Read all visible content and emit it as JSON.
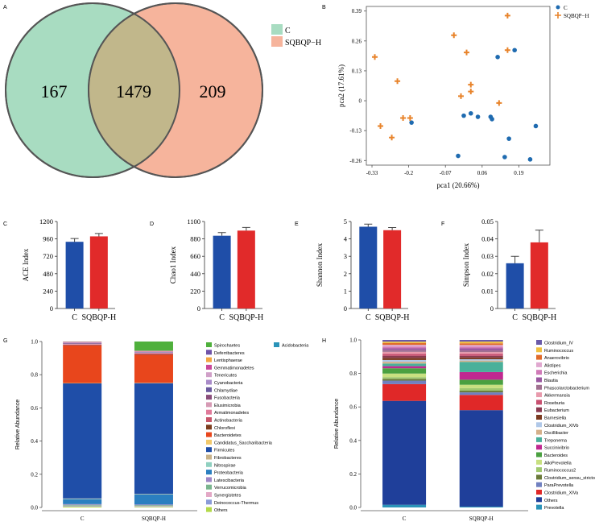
{
  "panels": {
    "A": "A",
    "B": "B",
    "C": "C",
    "D": "D",
    "E": "E",
    "F": "F",
    "G": "G",
    "H": "H"
  },
  "venn": {
    "left_only": "167",
    "overlap": "1479",
    "right_only": "209",
    "legend": [
      {
        "name": "C",
        "color": "#a8dcc1"
      },
      {
        "name": "SQBQP−H",
        "color": "#f6b49c"
      }
    ]
  },
  "chart_data": [
    {
      "id": "pca",
      "type": "scatter",
      "xlabel": "pca1 (20.66%)",
      "ylabel": "pca2 (17.61%)",
      "xlim": [
        -0.35,
        0.3
      ],
      "ylim": [
        -0.28,
        0.41
      ],
      "xticks": [
        "-0.33",
        "-0.2",
        "-0.07",
        "0.06",
        "0.19"
      ],
      "xtick_values": [
        -0.33,
        -0.2,
        -0.07,
        0.06,
        0.19
      ],
      "yticks": [
        "0.39",
        "0.26",
        "0.13",
        "0",
        "-0.13",
        "-0.26"
      ],
      "ytick_values": [
        0.39,
        0.26,
        0.13,
        0,
        -0.13,
        -0.26
      ],
      "series": [
        {
          "name": "C",
          "color": "#1f6bb0",
          "marker": "circle",
          "points": [
            [
              -0.19,
              -0.095
            ],
            [
              0.115,
              0.19
            ],
            [
              0.175,
              0.22
            ],
            [
              0.045,
              -0.07
            ],
            [
              0.02,
              -0.055
            ],
            [
              -0.005,
              -0.065
            ],
            [
              0.09,
              -0.07
            ],
            [
              0.095,
              -0.08
            ],
            [
              0.155,
              -0.165
            ],
            [
              0.25,
              -0.11
            ],
            [
              -0.025,
              -0.24
            ],
            [
              0.14,
              -0.245
            ],
            [
              0.23,
              -0.255
            ]
          ]
        },
        {
          "name": "SQBQP−H",
          "color": "#e8832a",
          "marker": "plus",
          "points": [
            [
              -0.32,
              0.19
            ],
            [
              -0.3,
              -0.11
            ],
            [
              -0.26,
              -0.16
            ],
            [
              -0.24,
              0.085
            ],
            [
              -0.22,
              -0.075
            ],
            [
              -0.195,
              -0.075
            ],
            [
              -0.04,
              0.285
            ],
            [
              -0.015,
              0.02
            ],
            [
              0.005,
              0.21
            ],
            [
              0.02,
              0.07
            ],
            [
              0.02,
              0.04
            ],
            [
              0.15,
              0.37
            ],
            [
              0.15,
              0.22
            ],
            [
              0.12,
              -0.01
            ]
          ]
        }
      ]
    },
    {
      "id": "ace",
      "type": "bar",
      "ylabel": "ACE Index",
      "categories": [
        "C",
        "SQBQP-H"
      ],
      "values": [
        920,
        995
      ],
      "errors": [
        45,
        40
      ],
      "ylim": [
        0,
        1200
      ],
      "yticks": [
        "0",
        "240",
        "480",
        "720",
        "960",
        "1200"
      ],
      "colors": [
        "#1f4ea8",
        "#e12a2a"
      ]
    },
    {
      "id": "chao1",
      "type": "bar",
      "ylabel": "Chao1 Index",
      "categories": [
        "C",
        "SQBQP-H"
      ],
      "values": [
        920,
        985
      ],
      "errors": [
        40,
        40
      ],
      "ylim": [
        0,
        1100
      ],
      "yticks": [
        "0",
        "220",
        "440",
        "660",
        "880",
        "1100"
      ],
      "colors": [
        "#1f4ea8",
        "#e12a2a"
      ]
    },
    {
      "id": "shannon",
      "type": "bar",
      "ylabel": "Shannon Index",
      "categories": [
        "C",
        "SQBQP-H"
      ],
      "values": [
        4.7,
        4.5
      ],
      "errors": [
        0.15,
        0.15
      ],
      "ylim": [
        0,
        5
      ],
      "yticks": [
        "0",
        "1",
        "2",
        "3",
        "4",
        "5"
      ],
      "colors": [
        "#1f4ea8",
        "#e12a2a"
      ]
    },
    {
      "id": "simpson",
      "type": "bar",
      "ylabel": "Simpson Index",
      "categories": [
        "C",
        "SQBQP-H"
      ],
      "values": [
        0.026,
        0.038
      ],
      "errors": [
        0.004,
        0.007
      ],
      "ylim": [
        0,
        0.05
      ],
      "yticks": [
        "0",
        "0.01",
        "0.02",
        "0.03",
        "0.04",
        "0.05"
      ],
      "colors": [
        "#1f4ea8",
        "#e12a2a"
      ]
    },
    {
      "id": "phylum",
      "type": "bar",
      "stacked": true,
      "ylabel": "Relative Abundance",
      "categories": [
        "C",
        "SQBQP-H"
      ],
      "ylim": [
        0,
        1
      ],
      "yticks": [
        "0.0",
        "0.2",
        "0.4",
        "0.6",
        "0.8",
        "1.0"
      ],
      "series": [
        {
          "name": "Others",
          "color": "#b3d94a",
          "values": [
            0.005,
            0.004
          ]
        },
        {
          "name": "Deinococcus-Thermus",
          "color": "#8a9bd8",
          "values": [
            0.003,
            0.002
          ]
        },
        {
          "name": "Synergistetes",
          "color": "#e3a8c6",
          "values": [
            0.003,
            0.003
          ]
        },
        {
          "name": "Verrucomicrobia",
          "color": "#7ab58f",
          "values": [
            0.005,
            0.005
          ]
        },
        {
          "name": "Latescibacteria",
          "color": "#9f86c6",
          "values": [
            0.004,
            0.004
          ]
        },
        {
          "name": "Proteobacteria",
          "color": "#2b7fc0",
          "values": [
            0.03,
            0.06
          ]
        },
        {
          "name": "Nitrospirae",
          "color": "#8fd0c0",
          "values": [
            0.002,
            0.002
          ]
        },
        {
          "name": "Fibrobacteres",
          "color": "#c9b38a",
          "values": [
            0.002,
            0.002
          ]
        },
        {
          "name": "Firmicutes",
          "color": "#1f4ea8",
          "values": [
            0.69,
            0.67
          ]
        },
        {
          "name": "Candidatus_Saccharibacteria",
          "color": "#f2c96b",
          "values": [
            0.002,
            0.002
          ]
        },
        {
          "name": "Bacteroidetes",
          "color": "#e8461c",
          "values": [
            0.225,
            0.17
          ]
        },
        {
          "name": "Chloroflexi",
          "color": "#7c3d1e",
          "values": [
            0.002,
            0.002
          ]
        },
        {
          "name": "Actinobacteria",
          "color": "#c7566a",
          "values": [
            0.004,
            0.005
          ]
        },
        {
          "name": "Armatimonadetes",
          "color": "#e07a9a",
          "values": [
            0.002,
            0.002
          ]
        },
        {
          "name": "Elusimicrobia",
          "color": "#d69ab4",
          "values": [
            0.002,
            0.002
          ]
        },
        {
          "name": "Fusobacteria",
          "color": "#8a4d7a",
          "values": [
            0.002,
            0.002
          ]
        },
        {
          "name": "Chlamydiae",
          "color": "#6b5a9e",
          "values": [
            0.002,
            0.002
          ]
        },
        {
          "name": "Cyanobacteria",
          "color": "#a98bc9",
          "values": [
            0.002,
            0.002
          ]
        },
        {
          "name": "Tenericutes",
          "color": "#d0a0c8",
          "values": [
            0.002,
            0.002
          ]
        },
        {
          "name": "Gemmatimonadetes",
          "color": "#c9489a",
          "values": [
            0.002,
            0.002
          ]
        },
        {
          "name": "Lentisphaerae",
          "color": "#f3a540",
          "values": [
            0.002,
            0.002
          ]
        },
        {
          "name": "Deferribacteres",
          "color": "#6f53a8",
          "values": [
            0.002,
            0.002
          ]
        },
        {
          "name": "Spirochaetes",
          "color": "#4fb03c",
          "values": [
            0.0,
            0.055
          ]
        },
        {
          "name": "Acidobacteria",
          "color": "#2a93b8",
          "values": [
            0.0,
            0.0
          ]
        }
      ]
    },
    {
      "id": "genus",
      "type": "bar",
      "stacked": true,
      "ylabel": "Relative Abundance",
      "categories": [
        "C",
        "SQBQP-H"
      ],
      "ylim": [
        0,
        1
      ],
      "yticks": [
        "0.0",
        "0.2",
        "0.4",
        "0.6",
        "0.8",
        "1.0"
      ],
      "series": [
        {
          "name": "Prevotella",
          "color": "#2a93b8",
          "values": [
            0.015,
            0.005
          ]
        },
        {
          "name": "Others",
          "color": "#1f3f9a",
          "values": [
            0.59,
            0.57
          ]
        },
        {
          "name": "Clostridium_XIVa",
          "color": "#e02828",
          "values": [
            0.095,
            0.09
          ]
        },
        {
          "name": "ParaPrevotella",
          "color": "#7080c0",
          "values": [
            0.02,
            0.015
          ]
        },
        {
          "name": "Clostridium_sensu_stricto",
          "color": "#6a7a3a",
          "values": [
            0.01,
            0.01
          ]
        },
        {
          "name": "Ruminococcus2",
          "color": "#a0c870",
          "values": [
            0.01,
            0.015
          ]
        },
        {
          "name": "AlloPrevotella",
          "color": "#c8e080",
          "values": [
            0.02,
            0.02
          ]
        },
        {
          "name": "Bacteroides",
          "color": "#4aa040",
          "values": [
            0.03,
            0.03
          ]
        },
        {
          "name": "Succinivibrio",
          "color": "#c02890",
          "values": [
            0.012,
            0.045
          ]
        },
        {
          "name": "Treponema",
          "color": "#4ab09a",
          "values": [
            0.015,
            0.06
          ]
        },
        {
          "name": "Oscillibacter",
          "color": "#d4b08a",
          "values": [
            0.01,
            0.008
          ]
        },
        {
          "name": "Clostridium_XIVb",
          "color": "#b0c8e8",
          "values": [
            0.01,
            0.008
          ]
        },
        {
          "name": "Barnesiella",
          "color": "#7a3a20",
          "values": [
            0.012,
            0.01
          ]
        },
        {
          "name": "Eubacterium",
          "color": "#8a3a50",
          "values": [
            0.012,
            0.01
          ]
        },
        {
          "name": "Roseburia",
          "color": "#c85070",
          "values": [
            0.01,
            0.012
          ]
        },
        {
          "name": "Akkermansia",
          "color": "#e89aac",
          "values": [
            0.012,
            0.01
          ]
        },
        {
          "name": "Phascolarctobacterium",
          "color": "#a07090",
          "values": [
            0.01,
            0.01
          ]
        },
        {
          "name": "Blautia",
          "color": "#9a58a0",
          "values": [
            0.01,
            0.012
          ]
        },
        {
          "name": "Escherichia",
          "color": "#d07ab8",
          "values": [
            0.01,
            0.01
          ]
        },
        {
          "name": "Alistipes",
          "color": "#e0a8d0",
          "values": [
            0.01,
            0.01
          ]
        },
        {
          "name": "Anaerovibrio",
          "color": "#e06a2a",
          "values": [
            0.01,
            0.01
          ]
        },
        {
          "name": "Ruminococcus",
          "color": "#f0c040",
          "values": [
            0.008,
            0.01
          ]
        },
        {
          "name": "Clostridium_IV",
          "color": "#6a5aa8",
          "values": [
            0.01,
            0.01
          ]
        }
      ]
    }
  ]
}
